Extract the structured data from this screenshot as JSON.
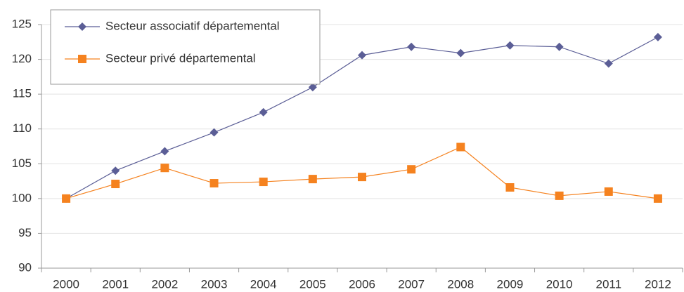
{
  "chart_data": {
    "type": "line",
    "categories": [
      "2000",
      "2001",
      "2002",
      "2003",
      "2004",
      "2005",
      "2006",
      "2007",
      "2008",
      "2009",
      "2010",
      "2011",
      "2012"
    ],
    "series": [
      {
        "name": "Secteur associatif départemental",
        "color": "#5b5e96",
        "marker": "diamond",
        "values": [
          100,
          104,
          106.8,
          109.5,
          112.4,
          116,
          120.6,
          121.8,
          120.9,
          122,
          121.8,
          119.4,
          123.2
        ]
      },
      {
        "name": "Secteur privé départemental",
        "color": "#f5821f",
        "marker": "square",
        "values": [
          100,
          102.1,
          104.4,
          102.2,
          102.4,
          102.8,
          103.1,
          104.2,
          107.4,
          101.6,
          100.4,
          101,
          100
        ]
      }
    ],
    "ylim": [
      90,
      125
    ],
    "yticks": [
      90,
      95,
      100,
      105,
      110,
      115,
      120,
      125
    ],
    "grid": true,
    "legend": "top-left"
  }
}
